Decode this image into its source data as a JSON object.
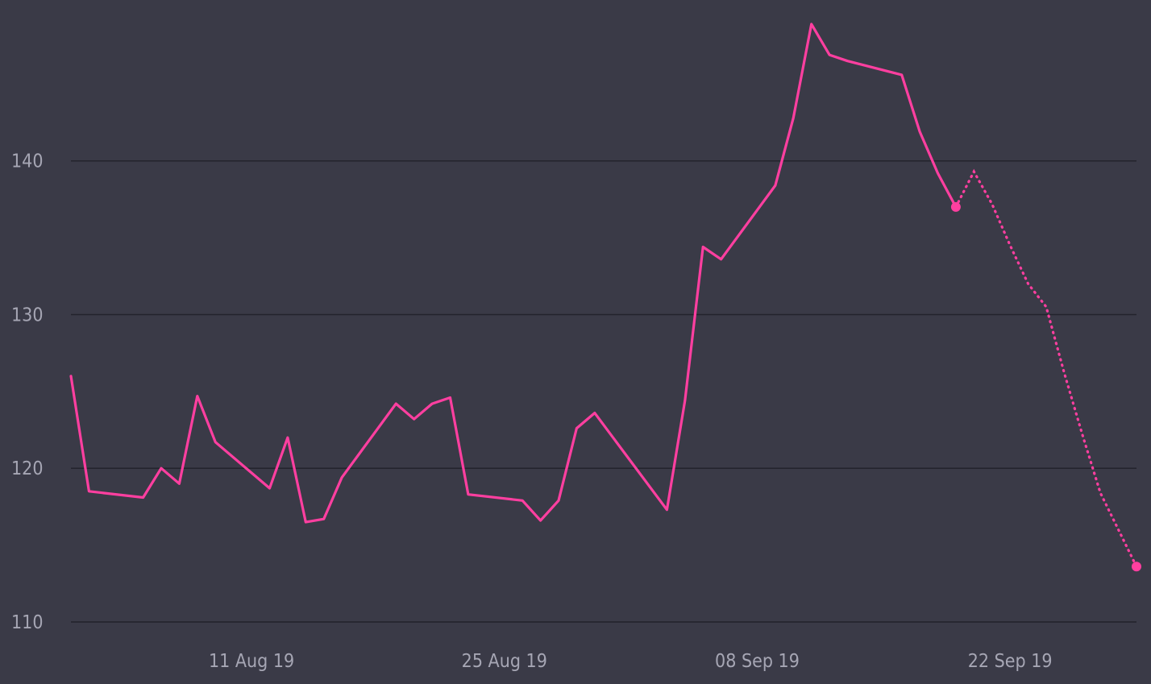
{
  "chart_data": {
    "type": "line",
    "title": "",
    "xlabel": "",
    "ylabel": "",
    "colors": {
      "background": "#3a3a47",
      "grid": "#23232c",
      "series": "#ff3fa0",
      "tick_text": "#a6a6b4"
    },
    "grid": true,
    "legend": "none",
    "xlim": [
      "2019-08-01",
      "2019-09-29"
    ],
    "ylim": [
      110,
      149
    ],
    "y_ticks": [
      {
        "value": 110,
        "label": "110"
      },
      {
        "value": 120,
        "label": "120"
      },
      {
        "value": 130,
        "label": "130"
      },
      {
        "value": 140,
        "label": "140"
      }
    ],
    "x_ticks": [
      {
        "value": "2019-08-11",
        "label": "11 Aug 19"
      },
      {
        "value": "2019-08-25",
        "label": "25 Aug 19"
      },
      {
        "value": "2019-09-08",
        "label": "08 Sep 19"
      },
      {
        "value": "2019-09-22",
        "label": "22 Sep 19"
      }
    ],
    "series": [
      {
        "style": "solid",
        "end_marker": true,
        "x": [
          "2019-08-01",
          "2019-08-02",
          "2019-08-05",
          "2019-08-06",
          "2019-08-07",
          "2019-08-08",
          "2019-08-09",
          "2019-08-12",
          "2019-08-13",
          "2019-08-14",
          "2019-08-15",
          "2019-08-16",
          "2019-08-19",
          "2019-08-20",
          "2019-08-21",
          "2019-08-22",
          "2019-08-23",
          "2019-08-26",
          "2019-08-27",
          "2019-08-28",
          "2019-08-29",
          "2019-08-30",
          "2019-09-03",
          "2019-09-04",
          "2019-09-05",
          "2019-09-06",
          "2019-09-09",
          "2019-09-10",
          "2019-09-11",
          "2019-09-12",
          "2019-09-13",
          "2019-09-16",
          "2019-09-17",
          "2019-09-18",
          "2019-09-19"
        ],
        "y": [
          126.0,
          118.5,
          118.1,
          120.0,
          119.0,
          124.7,
          121.7,
          118.7,
          122.0,
          116.5,
          116.7,
          119.4,
          124.2,
          123.2,
          124.2,
          124.6,
          118.3,
          117.9,
          116.6,
          117.9,
          122.6,
          123.6,
          117.3,
          124.4,
          134.4,
          133.6,
          138.4,
          142.8,
          148.9,
          146.9,
          146.5,
          145.6,
          141.9,
          139.2,
          137.0
        ]
      },
      {
        "style": "dotted",
        "end_marker": true,
        "x": [
          "2019-09-19",
          "2019-09-20",
          "2019-09-21",
          "2019-09-22",
          "2019-09-23",
          "2019-09-24",
          "2019-09-25",
          "2019-09-26",
          "2019-09-27",
          "2019-09-28",
          "2019-09-29"
        ],
        "y": [
          137.0,
          139.3,
          137.2,
          134.5,
          132.0,
          130.5,
          126.2,
          122.2,
          118.4,
          116.0,
          113.6
        ]
      }
    ]
  }
}
